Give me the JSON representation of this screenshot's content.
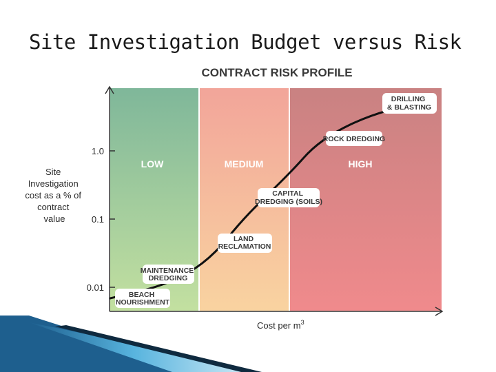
{
  "slide": {
    "title": "Site Investigation Budget versus Risk"
  },
  "chart_data": {
    "type": "line",
    "title": "CONTRACT RISK PROFILE",
    "xlabel": "Cost per m",
    "xlabel_superscript": "3",
    "ylabel_lines": [
      "Site",
      "Investigation",
      "cost as a % of",
      "contract",
      "value"
    ],
    "yscale": "log",
    "yticks": [
      {
        "value": 0.01,
        "label": "0.01"
      },
      {
        "value": 0.1,
        "label": "0.1"
      },
      {
        "value": 1.0,
        "label": "1.0"
      }
    ],
    "zones": [
      {
        "label": "LOW",
        "color_top": "#7fb79a",
        "color_bottom": "#c3e0a0"
      },
      {
        "label": "MEDIUM",
        "color_top": "#f2a59a",
        "color_bottom": "#f9d3a0"
      },
      {
        "label": "HIGH",
        "color_top": "#c98282",
        "color_bottom": "#f08a8c"
      }
    ],
    "curve_color": "#111111",
    "points": [
      {
        "label_lines": [
          "BEACH",
          "NOURISHMENT"
        ]
      },
      {
        "label_lines": [
          "MAINTENANCE",
          "DREDGING"
        ]
      },
      {
        "label_lines": [
          "LAND",
          "RECLAMATION"
        ]
      },
      {
        "label_lines": [
          "CAPITAL",
          "DREDGING (SOILS)"
        ]
      },
      {
        "label_lines": [
          "ROCK DREDGING"
        ]
      },
      {
        "label_lines": [
          "DRILLING",
          "& BLASTING"
        ]
      }
    ]
  }
}
